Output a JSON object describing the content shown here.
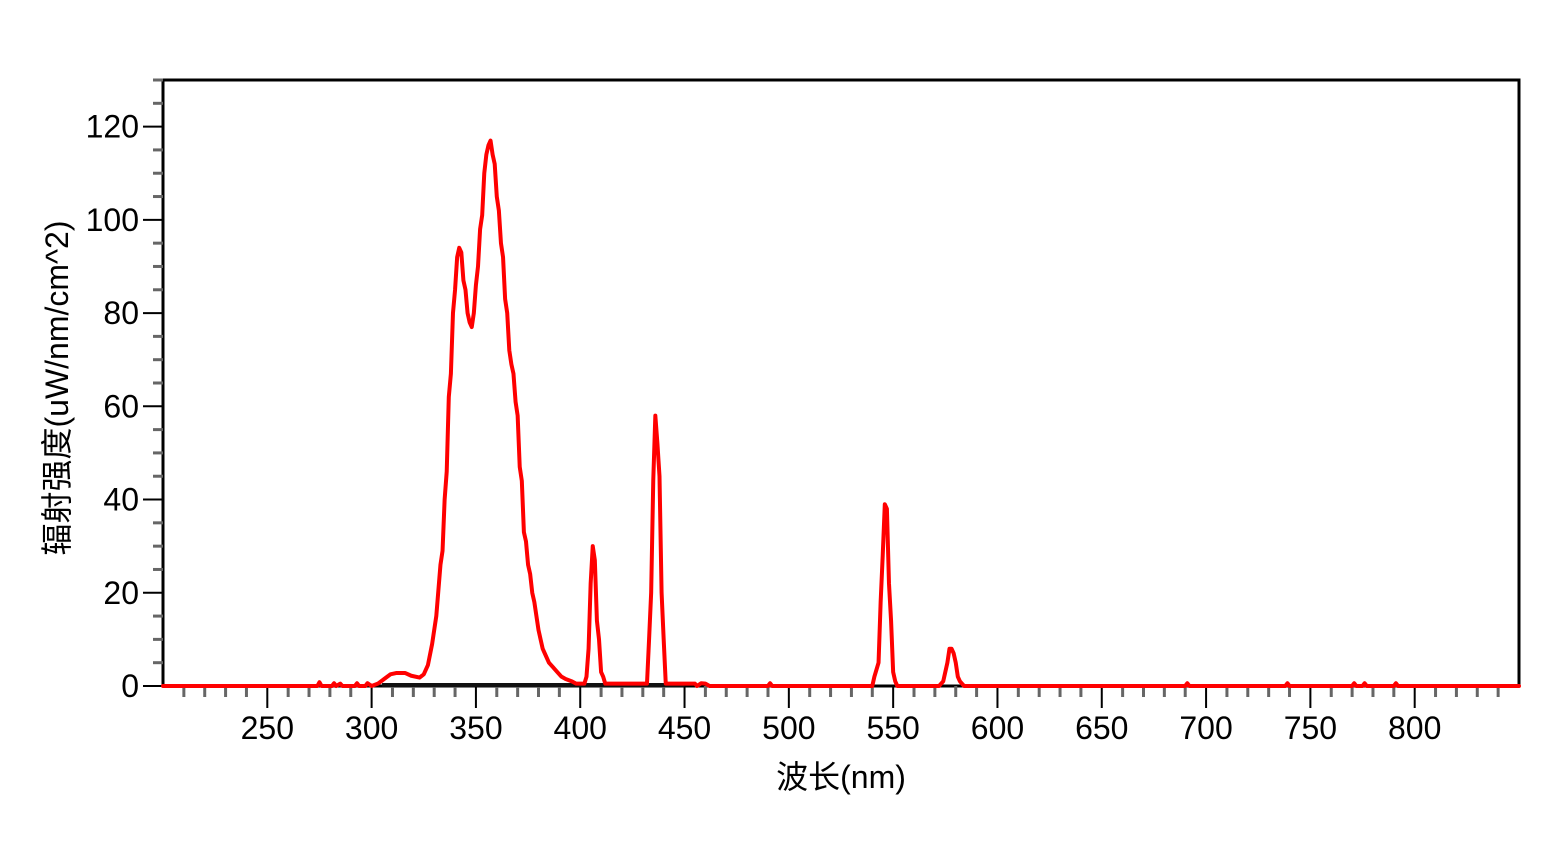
{
  "chart_data": {
    "type": "line",
    "title": "",
    "xlabel": "波长(nm)",
    "ylabel": "辐射强度(uW/nm/cm^2)",
    "xlim": [
      200,
      850
    ],
    "ylim": [
      0,
      130
    ],
    "x_ticks": [
      250,
      300,
      350,
      400,
      450,
      500,
      550,
      600,
      650,
      700,
      750,
      800
    ],
    "y_ticks": [
      0,
      20,
      40,
      60,
      80,
      100,
      120
    ],
    "x_tick_labels": [
      "250",
      "300",
      "350",
      "400",
      "450",
      "500",
      "550",
      "600",
      "650",
      "700",
      "750",
      "800"
    ],
    "y_tick_labels": [
      "0",
      "20",
      "40",
      "60",
      "80",
      "100",
      "120"
    ],
    "grid": false,
    "legend": "none",
    "series": [
      {
        "color": "#ff0000",
        "points": [
          [
            200,
            0
          ],
          [
            274,
            0
          ],
          [
            275,
            0.8
          ],
          [
            276,
            0
          ],
          [
            281,
            0
          ],
          [
            282,
            0.6
          ],
          [
            283,
            0
          ],
          [
            285,
            0.5
          ],
          [
            286,
            0
          ],
          [
            292,
            0
          ],
          [
            293,
            0.6
          ],
          [
            294,
            0
          ],
          [
            297,
            0
          ],
          [
            298,
            0.6
          ],
          [
            300,
            0
          ],
          [
            303,
            0.5
          ],
          [
            306,
            1.5
          ],
          [
            309,
            2.5
          ],
          [
            312,
            2.8
          ],
          [
            316,
            2.8
          ],
          [
            319,
            2.2
          ],
          [
            323,
            1.8
          ],
          [
            325,
            2.5
          ],
          [
            327,
            4.5
          ],
          [
            329,
            9
          ],
          [
            331,
            15
          ],
          [
            333,
            26
          ],
          [
            334,
            29
          ],
          [
            335,
            40
          ],
          [
            336,
            46
          ],
          [
            337,
            62
          ],
          [
            338,
            67
          ],
          [
            339,
            80
          ],
          [
            340,
            85
          ],
          [
            341,
            92
          ],
          [
            342,
            94
          ],
          [
            343,
            93
          ],
          [
            344,
            87
          ],
          [
            345,
            85
          ],
          [
            346,
            80
          ],
          [
            347,
            78
          ],
          [
            348,
            77
          ],
          [
            349,
            80
          ],
          [
            350,
            86
          ],
          [
            351,
            90
          ],
          [
            352,
            98
          ],
          [
            353,
            101
          ],
          [
            354,
            110
          ],
          [
            355,
            114
          ],
          [
            356,
            116
          ],
          [
            357,
            117
          ],
          [
            358,
            114
          ],
          [
            359,
            112
          ],
          [
            360,
            105
          ],
          [
            361,
            102
          ],
          [
            362,
            95
          ],
          [
            363,
            92
          ],
          [
            364,
            83
          ],
          [
            365,
            80
          ],
          [
            366,
            72
          ],
          [
            367,
            69
          ],
          [
            368,
            67
          ],
          [
            369,
            61
          ],
          [
            370,
            58
          ],
          [
            371,
            47
          ],
          [
            372,
            44
          ],
          [
            373,
            33
          ],
          [
            374,
            31
          ],
          [
            375,
            26
          ],
          [
            376,
            24
          ],
          [
            377,
            20
          ],
          [
            378,
            18
          ],
          [
            379,
            15
          ],
          [
            380,
            12
          ],
          [
            381,
            10
          ],
          [
            382,
            8
          ],
          [
            383,
            7
          ],
          [
            385,
            5
          ],
          [
            387,
            4
          ],
          [
            389,
            3
          ],
          [
            391,
            2
          ],
          [
            393,
            1.5
          ],
          [
            396,
            1
          ],
          [
            398,
            0.5
          ],
          [
            402,
            0.5
          ],
          [
            403,
            2
          ],
          [
            404,
            8
          ],
          [
            405,
            22
          ],
          [
            406,
            30
          ],
          [
            407,
            27
          ],
          [
            408,
            14
          ],
          [
            409,
            10
          ],
          [
            410,
            3
          ],
          [
            411,
            2
          ],
          [
            412,
            0.5
          ],
          [
            430,
            0.5
          ],
          [
            432,
            0.5
          ],
          [
            433,
            10
          ],
          [
            434,
            20
          ],
          [
            435,
            44
          ],
          [
            436,
            58
          ],
          [
            437,
            52
          ],
          [
            438,
            45
          ],
          [
            439,
            20
          ],
          [
            440,
            10
          ],
          [
            441,
            0.5
          ],
          [
            455,
            0.5
          ],
          [
            456,
            0
          ],
          [
            458,
            0.6
          ],
          [
            460,
            0.5
          ],
          [
            462,
            0
          ],
          [
            490,
            0
          ],
          [
            491,
            0.6
          ],
          [
            492,
            0
          ],
          [
            540,
            0
          ],
          [
            541,
            2
          ],
          [
            543,
            5
          ],
          [
            544,
            18
          ],
          [
            545,
            28
          ],
          [
            546,
            39
          ],
          [
            547,
            38
          ],
          [
            548,
            22
          ],
          [
            549,
            14
          ],
          [
            550,
            3
          ],
          [
            551,
            1
          ],
          [
            552,
            0
          ],
          [
            572,
            0
          ],
          [
            574,
            1
          ],
          [
            576,
            5
          ],
          [
            577,
            8
          ],
          [
            578,
            8
          ],
          [
            579,
            7
          ],
          [
            580,
            5
          ],
          [
            581,
            2
          ],
          [
            582,
            1
          ],
          [
            584,
            0
          ],
          [
            690,
            0
          ],
          [
            691,
            0.6
          ],
          [
            692,
            0
          ],
          [
            738,
            0
          ],
          [
            739,
            0.6
          ],
          [
            740,
            0
          ],
          [
            770,
            0
          ],
          [
            771,
            0.6
          ],
          [
            772,
            0
          ],
          [
            775,
            0
          ],
          [
            776,
            0.6
          ],
          [
            777,
            0
          ],
          [
            790,
            0
          ],
          [
            791,
            0.6
          ],
          [
            792,
            0
          ],
          [
            850,
            0
          ]
        ]
      }
    ]
  }
}
